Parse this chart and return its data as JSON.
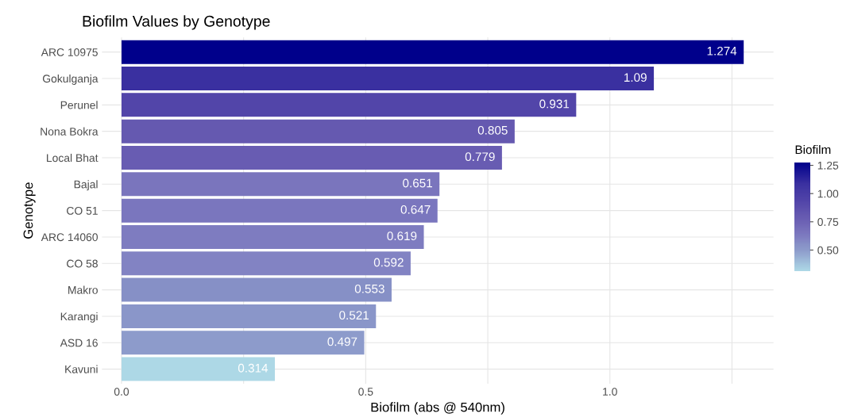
{
  "chart_data": {
    "type": "bar",
    "orientation": "horizontal",
    "title": "Biofilm Values by Genotype",
    "xlabel": "Biofilm (abs @ 540nm)",
    "ylabel": "Genotype",
    "clabel": "Biofilm",
    "categories": [
      "ARC 10975",
      "Gokulganja",
      "Perunel",
      "Nona Bokra",
      "Local Bhat",
      "Bajal",
      "CO 51",
      "ARC 14060",
      "CO 58",
      "Makro",
      "Karangi",
      "ASD 16",
      "Kavuni"
    ],
    "values": [
      1.274,
      1.09,
      0.931,
      0.805,
      0.779,
      0.651,
      0.647,
      0.619,
      0.592,
      0.553,
      0.521,
      0.497,
      0.314
    ],
    "colors": [
      "#00008b",
      "#3a30a0",
      "#5245a9",
      "#6559b0",
      "#685cb2",
      "#7a75bd",
      "#7a76be",
      "#7e7cc0",
      "#8283c3",
      "#8690c6",
      "#8a96c9",
      "#8d9bcb",
      "#add8e6"
    ],
    "data_labels": true,
    "xlim": [
      -0.04,
      1.335
    ],
    "xticks": [
      {
        "value": 0,
        "label": "0.0"
      },
      {
        "value": 0.25,
        "label": null
      },
      {
        "value": 0.5,
        "label": "0.5"
      },
      {
        "value": 0.75,
        "label": null
      },
      {
        "value": 1.0,
        "label": "1.0"
      },
      {
        "value": 1.25,
        "label": null
      }
    ],
    "clim": [
      0.314,
      1.274
    ],
    "cticks": [
      {
        "value": 0.5,
        "label": "0.50"
      },
      {
        "value": 0.75,
        "label": "0.75"
      },
      {
        "value": 1.0,
        "label": "1.00"
      },
      {
        "value": 1.25,
        "label": "1.25"
      }
    ],
    "grid": true
  }
}
